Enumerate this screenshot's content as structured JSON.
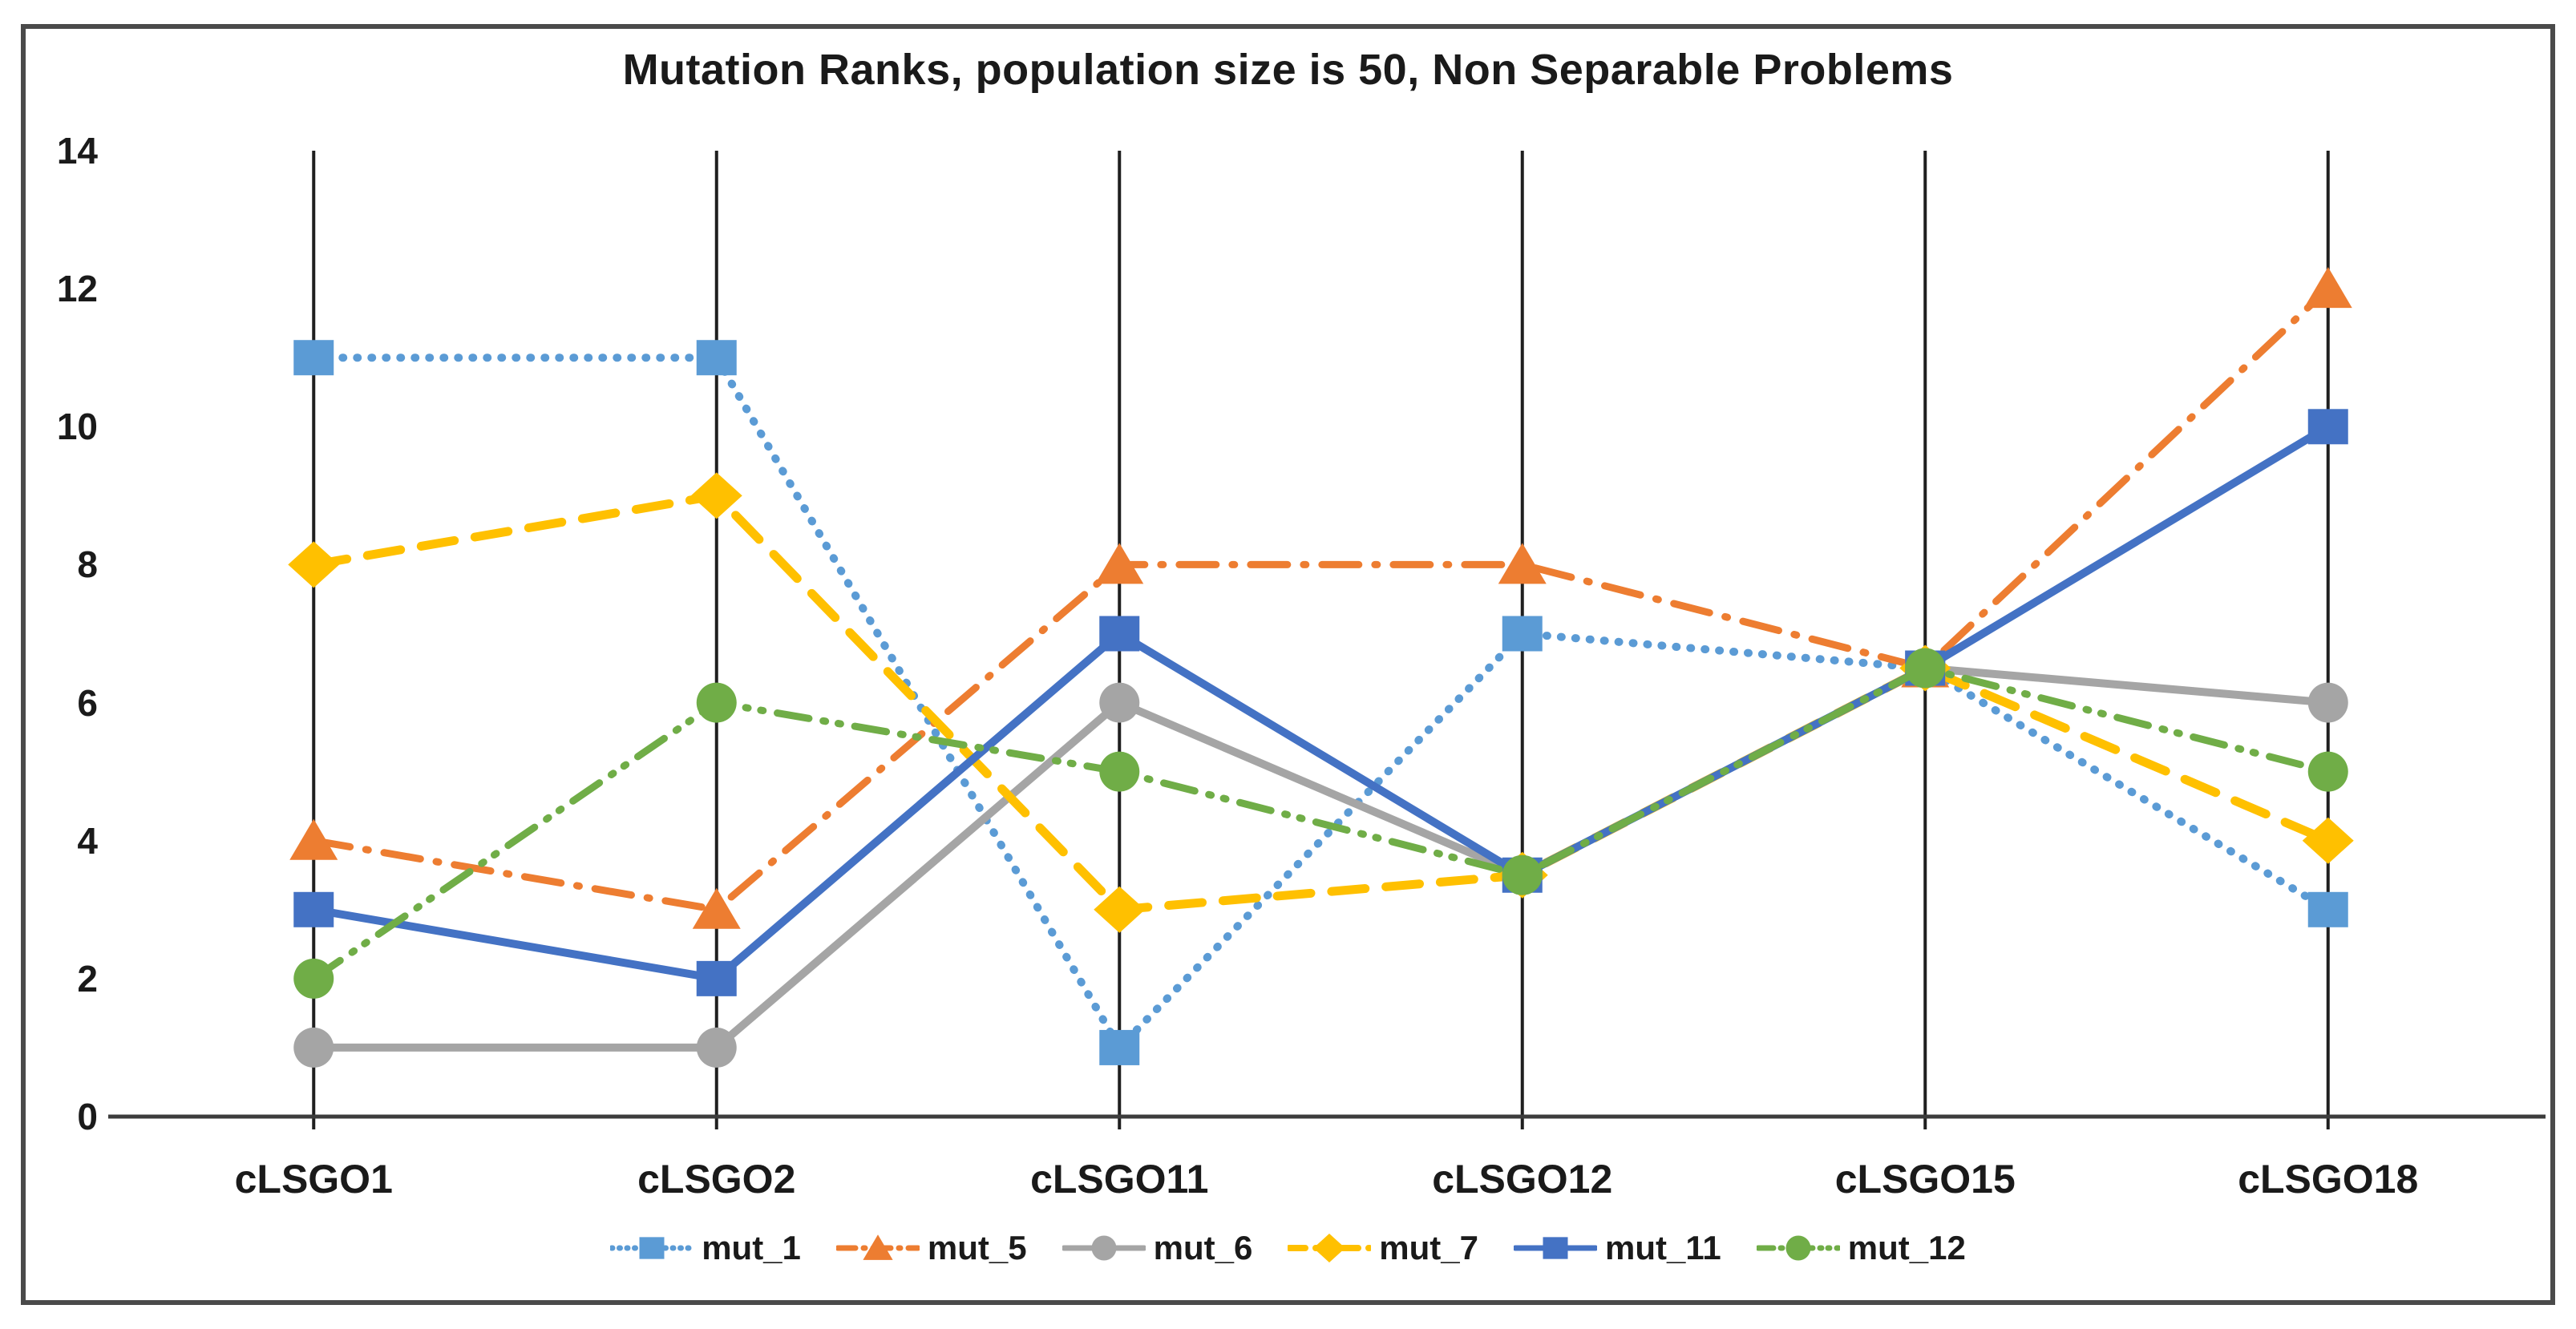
{
  "figure": {
    "background": "#ffffff",
    "border_color": "#4a4a4a",
    "text_color": "#1a1a1a"
  },
  "chart_data": {
    "type": "line",
    "title": "Mutation Ranks, population size is 50, Non Separable Problems",
    "categories": [
      "cLSGO1",
      "cLSGO2",
      "cLSGO11",
      "cLSGO12",
      "cLSGO15",
      "cLSGO18"
    ],
    "series": [
      {
        "name": "mut_1",
        "color": "#5B9BD5",
        "marker": "square",
        "line_style": "dotted",
        "values": [
          11,
          11,
          1,
          7,
          6.5,
          3
        ]
      },
      {
        "name": "mut_5",
        "color": "#ED7D31",
        "marker": "triangle",
        "line_style": "dash-dot",
        "values": [
          4,
          3,
          8,
          8,
          6.5,
          12
        ]
      },
      {
        "name": "mut_6",
        "color": "#A5A5A5",
        "marker": "circle",
        "line_style": "solid",
        "values": [
          1,
          1,
          6,
          3.5,
          6.5,
          6
        ]
      },
      {
        "name": "mut_7",
        "color": "#FFC000",
        "marker": "diamond",
        "line_style": "dashed",
        "values": [
          8,
          9,
          3,
          3.5,
          6.5,
          4
        ]
      },
      {
        "name": "mut_11",
        "color": "#4472C4",
        "marker": "square",
        "line_style": "solid",
        "values": [
          3,
          2,
          7,
          3.5,
          6.5,
          10
        ]
      },
      {
        "name": "mut_12",
        "color": "#70AD47",
        "marker": "circle",
        "line_style": "dash-dot-dot",
        "values": [
          2,
          6,
          5,
          3.5,
          6.5,
          5
        ]
      }
    ],
    "y_axis": {
      "min": 0,
      "max": 14,
      "step": 2,
      "tick_labels": [
        "0",
        "2",
        "4",
        "6",
        "8",
        "10",
        "12",
        "14"
      ]
    },
    "gridlines": {
      "vertical": true,
      "horizontal": false,
      "color": "#1f1f1f"
    },
    "axis_line_color": "#3c3c3c",
    "legend_position": "bottom"
  }
}
